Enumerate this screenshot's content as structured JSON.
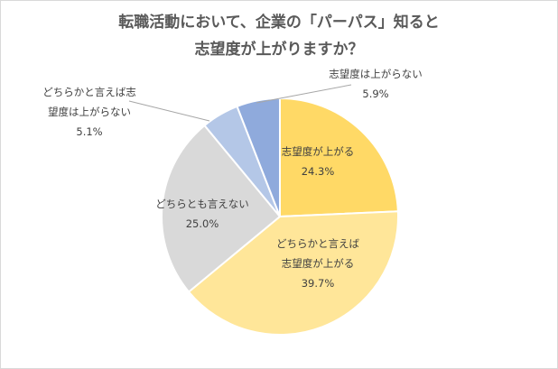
{
  "chart_data": {
    "type": "pie",
    "title_lines": [
      "転職活動において、企業の「パーパス」知ると",
      "志望度が上がりますか？"
    ],
    "slices": [
      {
        "label_lines": [
          "志望度が上がる"
        ],
        "value": 24.3,
        "value_text": "24.3%",
        "color": "#ffd966"
      },
      {
        "label_lines": [
          "どちらかと言えば",
          "志望度が上がる"
        ],
        "value": 39.7,
        "value_text": "39.7%",
        "color": "#ffe699"
      },
      {
        "label_lines": [
          "どちらとも言えない"
        ],
        "value": 25.0,
        "value_text": "25.0%",
        "color": "#d9d9d9"
      },
      {
        "label_lines": [
          "どちらかと言えば志",
          "望度は上がらない"
        ],
        "value": 5.1,
        "value_text": "5.1%",
        "color": "#b4c7e7"
      },
      {
        "label_lines": [
          "志望度は上がらない"
        ],
        "value": 5.9,
        "value_text": "5.9%",
        "color": "#8faadc"
      }
    ],
    "start_angle_deg": 0,
    "direction": "clockwise"
  }
}
